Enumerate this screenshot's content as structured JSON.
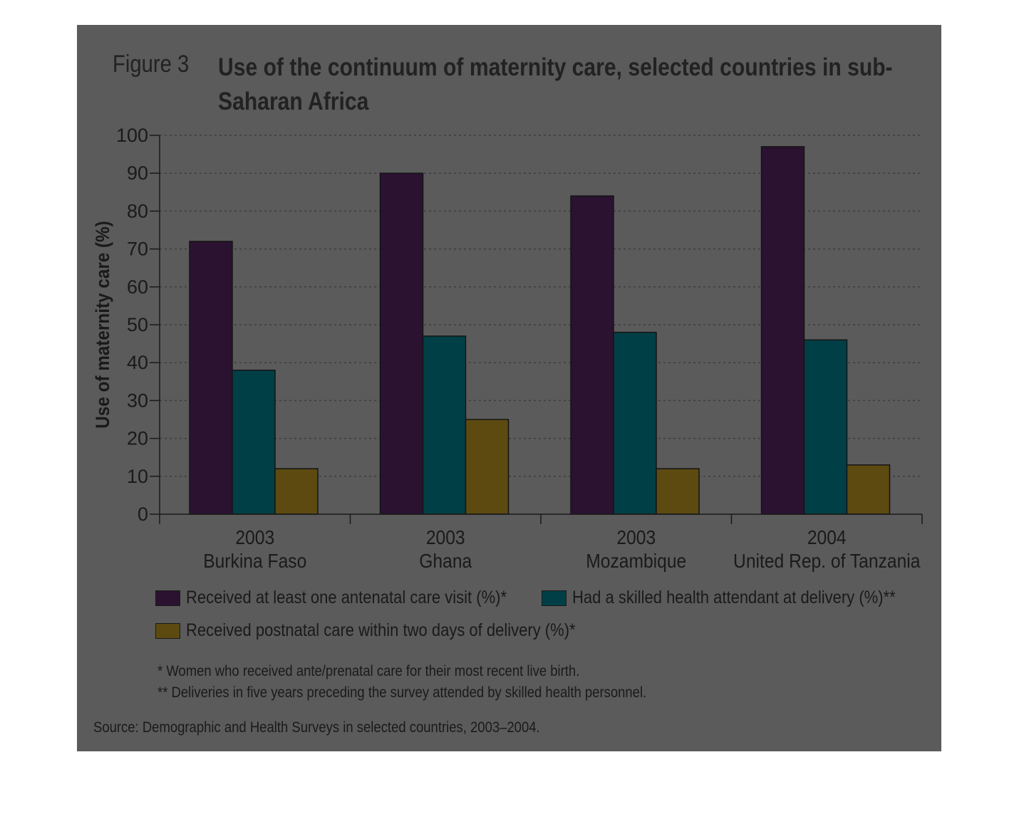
{
  "figure": {
    "label": "Figure 3",
    "title": "Use of the continuum of maternity care, selected countries in sub-Saharan Africa"
  },
  "notes": {
    "note1": "* Women who received ante/prenatal care for their most recent live birth.",
    "note2": "** Deliveries in five years preceding the survey attended by skilled health personnel.",
    "source": "Source: Demographic and Health Surveys in selected countries, 2003–2004."
  },
  "colors": {
    "panel": "#5b5b5b",
    "antenatal": "#2b1230",
    "skilled": "#013f46",
    "postnatal": "#5c4a10"
  },
  "chart_data": {
    "type": "bar",
    "ylabel": "Use of maternity care (%)",
    "ylim": [
      0,
      100
    ],
    "yticks": [
      0,
      10,
      20,
      30,
      40,
      50,
      60,
      70,
      80,
      90,
      100
    ],
    "grid": "horizontal dotted",
    "categories": [
      {
        "year": "2003",
        "country": "Burkina Faso"
      },
      {
        "year": "2003",
        "country": "Ghana"
      },
      {
        "year": "2003",
        "country": "Mozambique"
      },
      {
        "year": "2004",
        "country": "United Rep. of Tanzania"
      }
    ],
    "series": [
      {
        "name": "Received at least one antenatal care visit (%)*",
        "values": [
          72,
          90,
          84,
          97
        ]
      },
      {
        "name": "Had a skilled health attendant at delivery (%)**",
        "values": [
          38,
          47,
          48,
          46
        ]
      },
      {
        "name": "Received postnatal care within two days of delivery (%)*",
        "values": [
          12,
          25,
          12,
          13
        ]
      }
    ],
    "legend_position": "bottom"
  }
}
